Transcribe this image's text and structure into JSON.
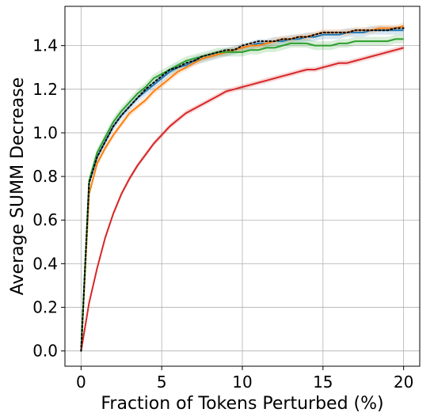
{
  "chart_data": {
    "type": "line",
    "title": "",
    "xlabel": "Fraction of Tokens Perturbed (%)",
    "ylabel": "Average SUMM Decrease",
    "xlim": [
      -1,
      21
    ],
    "ylim": [
      -0.07,
      1.58
    ],
    "xticks": [
      0,
      5,
      10,
      15,
      20
    ],
    "xtick_labels": [
      "0",
      "5",
      "10",
      "15",
      "20"
    ],
    "yticks": [
      0.0,
      0.2,
      0.4,
      0.6,
      0.8,
      1.0,
      1.2,
      1.4
    ],
    "ytick_labels": [
      "0.0",
      "0.2",
      "0.4",
      "0.6",
      "0.8",
      "1.0",
      "1.2",
      "1.4"
    ],
    "grid": true,
    "legend": "none",
    "series": [
      {
        "color": "#1f77b4",
        "style": "solid",
        "band": 0.02,
        "x": [
          0,
          0.5,
          1,
          1.5,
          2,
          2.5,
          3,
          3.5,
          4,
          4.5,
          5,
          5.5,
          6,
          6.5,
          7,
          7.5,
          8,
          8.5,
          9,
          9.5,
          10,
          10.5,
          11,
          11.5,
          12,
          12.5,
          13,
          13.5,
          14,
          14.5,
          15,
          15.5,
          16,
          16.5,
          17,
          17.5,
          18,
          18.5,
          19,
          19.5,
          20
        ],
        "y": [
          0.0,
          0.77,
          0.89,
          0.96,
          1.03,
          1.08,
          1.12,
          1.16,
          1.19,
          1.22,
          1.25,
          1.28,
          1.3,
          1.31,
          1.33,
          1.34,
          1.35,
          1.36,
          1.37,
          1.38,
          1.39,
          1.4,
          1.41,
          1.41,
          1.42,
          1.42,
          1.43,
          1.43,
          1.44,
          1.44,
          1.45,
          1.45,
          1.45,
          1.46,
          1.46,
          1.46,
          1.47,
          1.47,
          1.47,
          1.47,
          1.47
        ]
      },
      {
        "color": "#ff7f0e",
        "style": "solid",
        "band": 0.015,
        "x": [
          0,
          0.5,
          1,
          1.5,
          2,
          2.5,
          3,
          3.5,
          4,
          4.5,
          5,
          5.5,
          6,
          6.5,
          7,
          7.5,
          8,
          8.5,
          9,
          9.5,
          10,
          10.5,
          11,
          11.5,
          12,
          12.5,
          13,
          13.5,
          14,
          14.5,
          15,
          15.5,
          16,
          16.5,
          17,
          17.5,
          18,
          18.5,
          19,
          19.5,
          20
        ],
        "y": [
          0.0,
          0.72,
          0.86,
          0.93,
          0.99,
          1.04,
          1.09,
          1.12,
          1.15,
          1.19,
          1.22,
          1.25,
          1.28,
          1.3,
          1.32,
          1.34,
          1.35,
          1.36,
          1.37,
          1.38,
          1.39,
          1.4,
          1.4,
          1.41,
          1.42,
          1.43,
          1.43,
          1.44,
          1.44,
          1.45,
          1.46,
          1.46,
          1.46,
          1.46,
          1.47,
          1.47,
          1.47,
          1.48,
          1.48,
          1.48,
          1.49
        ]
      },
      {
        "color": "#2ca02c",
        "style": "solid",
        "band": 0.02,
        "x": [
          0,
          0.5,
          1,
          1.5,
          2,
          2.5,
          3,
          3.5,
          4,
          4.5,
          5,
          5.5,
          6,
          6.5,
          7,
          7.5,
          8,
          8.5,
          9,
          9.5,
          10,
          10.5,
          11,
          11.5,
          12,
          12.5,
          13,
          13.5,
          14,
          14.5,
          15,
          15.5,
          16,
          16.5,
          17,
          17.5,
          18,
          18.5,
          19,
          19.5,
          20
        ],
        "y": [
          0.0,
          0.78,
          0.91,
          0.98,
          1.05,
          1.1,
          1.14,
          1.18,
          1.21,
          1.25,
          1.27,
          1.29,
          1.31,
          1.33,
          1.34,
          1.35,
          1.36,
          1.37,
          1.37,
          1.37,
          1.37,
          1.38,
          1.38,
          1.39,
          1.39,
          1.4,
          1.41,
          1.41,
          1.41,
          1.4,
          1.4,
          1.4,
          1.41,
          1.41,
          1.42,
          1.42,
          1.42,
          1.42,
          1.42,
          1.43,
          1.43
        ]
      },
      {
        "color": "#d62728",
        "style": "solid",
        "band": 0.012,
        "x": [
          0,
          0.5,
          1,
          1.5,
          2,
          2.5,
          3,
          3.5,
          4,
          4.5,
          5,
          5.5,
          6,
          6.5,
          7,
          7.5,
          8,
          8.5,
          9,
          9.5,
          10,
          10.5,
          11,
          11.5,
          12,
          12.5,
          13,
          13.5,
          14,
          14.5,
          15,
          15.5,
          16,
          16.5,
          17,
          17.5,
          18,
          18.5,
          19,
          19.5,
          20
        ],
        "y": [
          0.0,
          0.22,
          0.38,
          0.52,
          0.63,
          0.72,
          0.79,
          0.85,
          0.9,
          0.95,
          0.99,
          1.03,
          1.06,
          1.09,
          1.11,
          1.13,
          1.15,
          1.17,
          1.19,
          1.2,
          1.21,
          1.22,
          1.23,
          1.24,
          1.25,
          1.26,
          1.27,
          1.28,
          1.29,
          1.29,
          1.3,
          1.31,
          1.32,
          1.32,
          1.33,
          1.34,
          1.35,
          1.36,
          1.37,
          1.38,
          1.39
        ]
      },
      {
        "color": "#000000",
        "style": "dotted",
        "band": 0,
        "x": [
          0,
          0.5,
          1,
          1.5,
          2,
          2.5,
          3,
          3.5,
          4,
          4.5,
          5,
          5.5,
          6,
          6.5,
          7,
          7.5,
          8,
          8.5,
          9,
          9.5,
          10,
          10.5,
          11,
          11.5,
          12,
          12.5,
          13,
          13.5,
          14,
          14.5,
          15,
          15.5,
          16,
          16.5,
          17,
          17.5,
          18,
          18.5,
          19,
          19.5,
          20
        ],
        "y": [
          0.0,
          0.77,
          0.89,
          0.96,
          1.03,
          1.08,
          1.12,
          1.16,
          1.2,
          1.23,
          1.26,
          1.29,
          1.3,
          1.32,
          1.33,
          1.35,
          1.36,
          1.37,
          1.38,
          1.38,
          1.4,
          1.41,
          1.42,
          1.42,
          1.42,
          1.43,
          1.43,
          1.44,
          1.44,
          1.45,
          1.46,
          1.46,
          1.46,
          1.46,
          1.47,
          1.47,
          1.47,
          1.47,
          1.47,
          1.48,
          1.48
        ]
      }
    ]
  }
}
